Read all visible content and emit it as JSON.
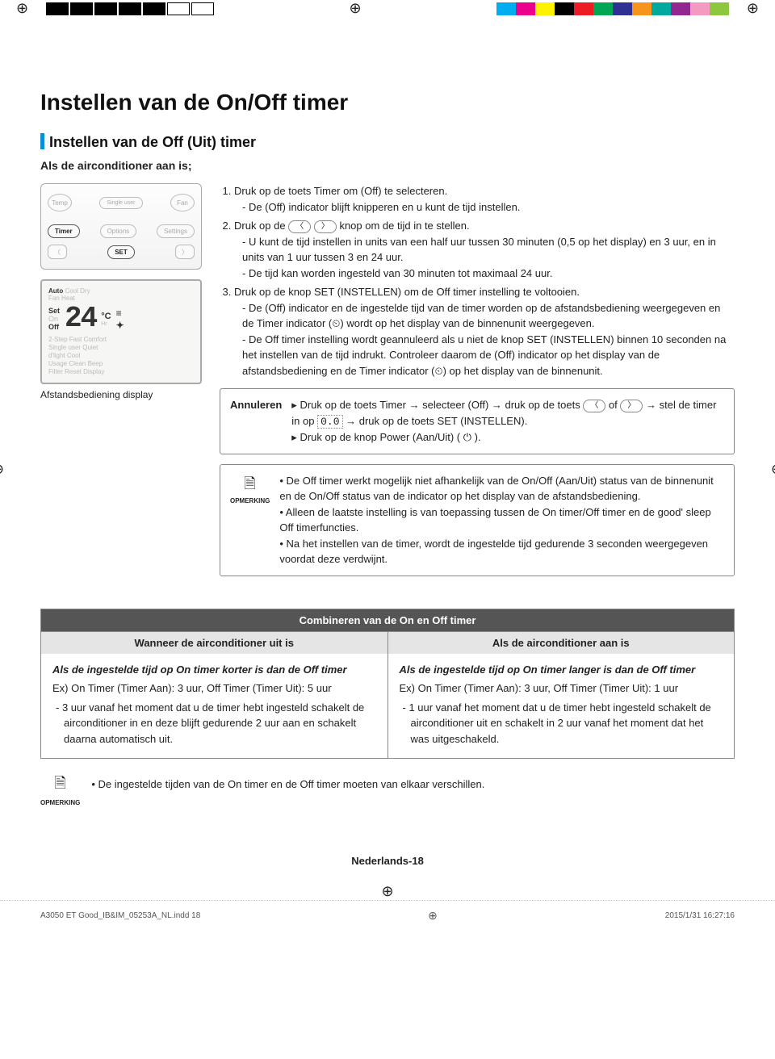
{
  "color_bar": [
    "#00aeef",
    "#ec008c",
    "#fff200",
    "#000000",
    "#ed1c24",
    "#00a651",
    "#2e3192",
    "#f7941d",
    "#00a99d",
    "#92278f",
    "#f49ac1",
    "#8dc63f"
  ],
  "main_title": "Instellen van de On/Off timer",
  "sub_title": "Instellen van de Off (Uit) timer",
  "lead": "Als de airconditioner aan is;",
  "remote": {
    "temp": "Temp",
    "fan": "Fan",
    "single_user": "Single user",
    "timer": "Timer",
    "options": "Options",
    "settings": "Settings",
    "set": "SET"
  },
  "lcd": {
    "auto": "Auto",
    "modes_row": "Cool Dry",
    "fan_heat": "Fan   Heat",
    "set": "Set",
    "off": "Off",
    "num": "24",
    "degc": "°C",
    "lines": [
      "2-Step Fast Comfort",
      "Single user Quiet",
      "d'light Cool",
      "Usage   Clean   Beep",
      "Filter Reset   Display"
    ]
  },
  "caption": "Afstandsbediening display",
  "inst": {
    "i1": "Druk op de toets Timer om (Off) te selecteren.",
    "i1a": "De (Off) indicator blijft knipperen en u kunt de tijd instellen.",
    "i2a": "Druk op de ",
    "i2b": " knop om de tijd in te stellen.",
    "i2c": "U kunt de tijd instellen in units van een half uur tussen 30 minuten (0,5 op het display) en 3 uur, en in units van 1 uur tussen 3 en 24 uur.",
    "i2d": "De tijd kan worden ingesteld van 30 minuten tot maximaal 24 uur.",
    "i3": "Druk op de knop  SET (INSTELLEN) om de Off timer instelling te voltooien.",
    "i3a": "De (Off) indicator en de ingestelde tijd van de timer worden op de afstandsbediening weergegeven en de Timer indicator (⏲) wordt op het display van de binnenunit weergegeven.",
    "i3b": "De Off timer instelling wordt geannuleerd als u niet de knop SET (INSTELLEN) binnen 10 seconden na het instellen van de tijd indrukt. Controleer daarom de (Off) indicator op het display van de afstandsbediening en de Timer indicator (⏲) op het display van de binnenunit."
  },
  "annuleren": {
    "label": "Annuleren",
    "l1a": "Druk op de toets Timer → selecteer (Off) → druk op de toets ",
    "l1b": " of ",
    "l1c": " →    stel de timer in op ",
    "l1d": " → druk op de toets SET (INSTELLEN).",
    "l2": "Druk op de knop Power (Aan/Uit) ( ⏻ )."
  },
  "opmerking": {
    "label": "OPMERKING",
    "n1": "De Off timer werkt mogelijk niet afhankelijk van de On/Off (Aan/Uit) status van de binnenunit en de On/Off status van de indicator op het display van de afstandsbediening.",
    "n2": "Alleen de laatste instelling is van toepassing tussen de On timer/Off timer en de good' sleep Off timerfuncties.",
    "n3": "Na het instellen van de timer, wordt de ingestelde tijd gedurende 3 seconden weergegeven voordat deze verdwijnt."
  },
  "combine": {
    "title": "Combineren van de On en Off timer",
    "col1_head": "Wanneer de airconditioner uit is",
    "col2_head": "Als de airconditioner aan is",
    "c1_title": "Als de ingestelde tijd op On timer korter is dan de Off timer",
    "c1_ex": "Ex) On Timer (Timer Aan): 3 uur, Off Timer (Timer Uit): 5 uur",
    "c1_body": "- 3 uur vanaf het moment dat u de timer hebt ingesteld schakelt de airconditioner in en deze blijft gedurende 2 uur aan en schakelt daarna automatisch uit.",
    "c2_title": "Als de ingestelde tijd op On timer langer is dan de Off timer",
    "c2_ex": "Ex) On Timer (Timer Aan): 3 uur, Off Timer (Timer Uit): 1 uur",
    "c2_body": "- 1 uur vanaf het moment dat u de timer hebt ingesteld schakelt de airconditioner uit en schakelt in 2 uur vanaf het moment dat het was uitgeschakeld."
  },
  "bottom_note": "De ingestelde tijden van de On timer en de Off timer moeten van elkaar verschillen.",
  "page_num": "Nederlands-18",
  "footer": {
    "file": "A3050 ET Good_IB&IM_05253A_NL.indd   18",
    "date": "2015/1/31   16:27:16"
  }
}
